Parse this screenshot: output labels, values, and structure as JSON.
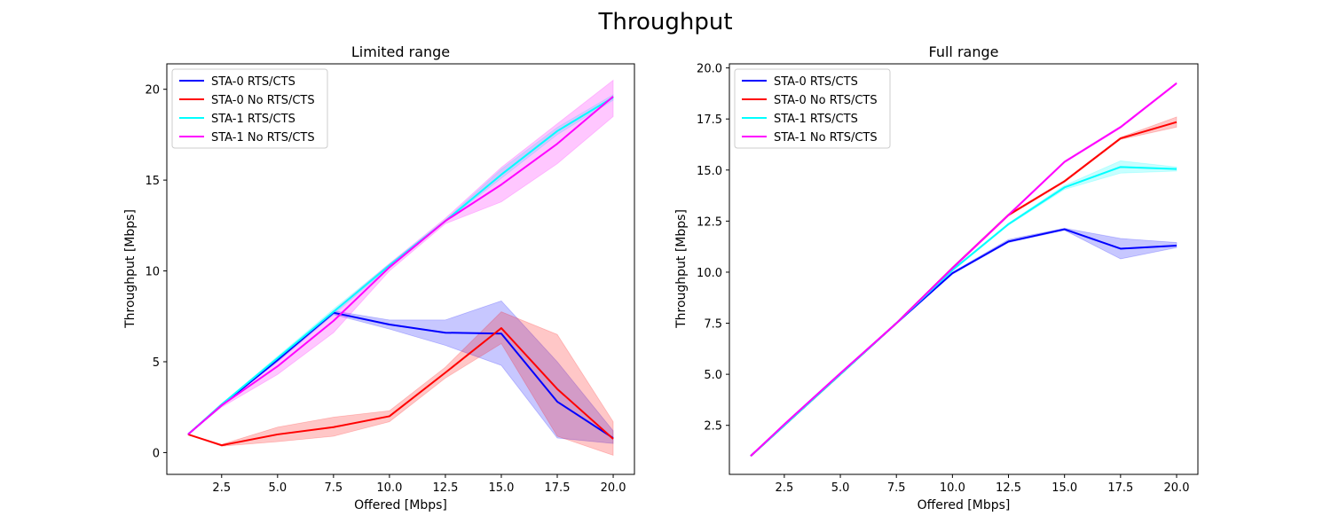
{
  "figure": {
    "title": "Throughput"
  },
  "chart_data": [
    {
      "type": "line",
      "title": "Limited range",
      "xlabel": "Offered [Mbps]",
      "ylabel": "Throughput [Mbps]",
      "xlim": [
        0.05,
        20.95
      ],
      "ylim": [
        -1.2,
        21.4
      ],
      "xticks": [
        2.5,
        5.0,
        7.5,
        10.0,
        12.5,
        15.0,
        17.5,
        20.0
      ],
      "xtick_labels": [
        "2.5",
        "5.0",
        "7.5",
        "10.0",
        "12.5",
        "15.0",
        "17.5",
        "20.0"
      ],
      "yticks": [
        0,
        5,
        10,
        15,
        20
      ],
      "ytick_labels": [
        "0",
        "5",
        "10",
        "15",
        "20"
      ],
      "grid": false,
      "legend_position": "top-left",
      "series": [
        {
          "name": "STA-0 RTS/CTS",
          "color": "#0000ff",
          "x": [
            1.0,
            2.5,
            5.0,
            7.5,
            10.0,
            12.5,
            15.0,
            17.5,
            20.0
          ],
          "y": [
            1.0,
            2.6,
            5.1,
            7.7,
            7.05,
            6.6,
            6.55,
            2.8,
            0.8
          ],
          "band_low": [
            1.0,
            2.6,
            5.0,
            7.6,
            6.8,
            5.9,
            4.8,
            0.8,
            0.5
          ],
          "band_high": [
            1.0,
            2.6,
            5.2,
            7.8,
            7.3,
            7.3,
            8.35,
            5.0,
            1.2
          ]
        },
        {
          "name": "STA-0 No RTS/CTS",
          "color": "#ff0000",
          "x": [
            1.0,
            2.5,
            5.0,
            7.5,
            10.0,
            12.5,
            15.0,
            17.5,
            20.0
          ],
          "y": [
            1.0,
            0.4,
            1.0,
            1.4,
            2.0,
            4.4,
            6.85,
            3.5,
            0.75
          ],
          "band_low": [
            1.0,
            0.35,
            0.6,
            0.9,
            1.7,
            4.1,
            6.0,
            0.9,
            -0.15
          ],
          "band_high": [
            1.0,
            0.45,
            1.4,
            1.95,
            2.3,
            4.7,
            7.75,
            6.5,
            1.7
          ]
        },
        {
          "name": "STA-1 RTS/CTS",
          "color": "#00ffff",
          "x": [
            1.0,
            2.5,
            5.0,
            7.5,
            10.0,
            12.5,
            15.0,
            17.5,
            20.0
          ],
          "y": [
            1.0,
            2.65,
            5.2,
            7.75,
            10.3,
            12.75,
            15.3,
            17.7,
            19.55
          ],
          "band_low": [
            1.0,
            2.6,
            5.1,
            7.6,
            10.2,
            12.7,
            15.1,
            17.5,
            19.4
          ],
          "band_high": [
            1.0,
            2.7,
            5.3,
            7.9,
            10.4,
            12.8,
            15.6,
            17.9,
            19.7
          ]
        },
        {
          "name": "STA-1 No RTS/CTS",
          "color": "#ff00ff",
          "x": [
            1.0,
            2.5,
            5.0,
            7.5,
            10.0,
            12.5,
            15.0,
            17.5,
            20.0
          ],
          "y": [
            1.0,
            2.6,
            4.75,
            7.25,
            10.2,
            12.75,
            14.75,
            17.0,
            19.6
          ],
          "band_low": [
            1.0,
            2.5,
            4.3,
            6.6,
            10.0,
            12.6,
            13.8,
            15.9,
            18.5
          ],
          "band_high": [
            1.0,
            2.7,
            5.1,
            7.8,
            10.4,
            12.9,
            15.7,
            18.1,
            20.5
          ]
        }
      ]
    },
    {
      "type": "line",
      "title": "Full range",
      "xlabel": "Offered [Mbps]",
      "ylabel": "Throughput [Mbps]",
      "xlim": [
        0.05,
        20.95
      ],
      "ylim": [
        0.1,
        20.2
      ],
      "xticks": [
        2.5,
        5.0,
        7.5,
        10.0,
        12.5,
        15.0,
        17.5,
        20.0
      ],
      "xtick_labels": [
        "2.5",
        "5.0",
        "7.5",
        "10.0",
        "12.5",
        "15.0",
        "17.5",
        "20.0"
      ],
      "yticks": [
        2.5,
        5.0,
        7.5,
        10.0,
        12.5,
        15.0,
        17.5,
        20.0
      ],
      "ytick_labels": [
        "2.5",
        "5.0",
        "7.5",
        "10.0",
        "12.5",
        "15.0",
        "17.5",
        "20.0"
      ],
      "grid": false,
      "legend_position": "top-left",
      "series": [
        {
          "name": "STA-0 RTS/CTS",
          "color": "#0000ff",
          "x": [
            1.0,
            2.5,
            5.0,
            7.5,
            10.0,
            12.5,
            15.0,
            17.5,
            20.0
          ],
          "y": [
            1.0,
            2.5,
            5.0,
            7.5,
            9.95,
            11.5,
            12.1,
            11.15,
            11.3
          ],
          "band_low": [
            1.0,
            2.5,
            5.0,
            7.5,
            9.9,
            11.45,
            12.05,
            10.65,
            11.2
          ],
          "band_high": [
            1.0,
            2.5,
            5.0,
            7.5,
            10.0,
            11.6,
            12.15,
            11.65,
            11.45
          ]
        },
        {
          "name": "STA-0 No RTS/CTS",
          "color": "#ff0000",
          "x": [
            1.0,
            2.5,
            5.0,
            7.5,
            10.0,
            12.5,
            15.0,
            17.5,
            20.0
          ],
          "y": [
            1.0,
            2.5,
            5.0,
            7.5,
            10.2,
            12.8,
            14.45,
            16.55,
            17.35
          ],
          "band_low": [
            1.0,
            2.5,
            5.0,
            7.5,
            10.15,
            12.75,
            14.4,
            16.5,
            17.1
          ],
          "band_high": [
            1.0,
            2.5,
            5.0,
            7.5,
            10.25,
            12.85,
            14.5,
            16.6,
            17.6
          ]
        },
        {
          "name": "STA-1 RTS/CTS",
          "color": "#00ffff",
          "x": [
            1.0,
            2.5,
            5.0,
            7.5,
            10.0,
            12.5,
            15.0,
            17.5,
            20.0
          ],
          "y": [
            1.0,
            2.5,
            5.0,
            7.5,
            10.1,
            12.35,
            14.15,
            15.15,
            15.05
          ],
          "band_low": [
            1.0,
            2.5,
            5.0,
            7.5,
            10.05,
            12.3,
            14.05,
            14.85,
            14.95
          ],
          "band_high": [
            1.0,
            2.5,
            5.0,
            7.5,
            10.15,
            12.4,
            14.25,
            15.45,
            15.15
          ]
        },
        {
          "name": "STA-1 No RTS/CTS",
          "color": "#ff00ff",
          "x": [
            1.0,
            2.5,
            5.0,
            7.5,
            10.0,
            12.5,
            15.0,
            17.5,
            20.0
          ],
          "y": [
            1.0,
            2.55,
            5.05,
            7.5,
            10.2,
            12.8,
            15.4,
            17.1,
            19.25
          ],
          "band_low": [
            1.0,
            2.5,
            5.0,
            7.45,
            10.15,
            12.75,
            15.35,
            17.05,
            19.2
          ],
          "band_high": [
            1.0,
            2.6,
            5.1,
            7.55,
            10.25,
            12.85,
            15.45,
            17.15,
            19.3
          ]
        }
      ]
    }
  ]
}
